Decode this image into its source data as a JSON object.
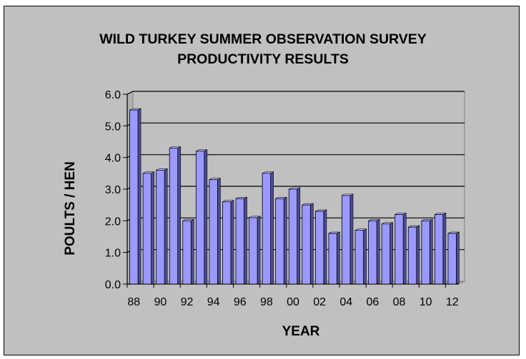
{
  "chart_data": {
    "type": "bar",
    "title": "WILD TURKEY SUMMER OBSERVATION SURVEY",
    "subtitle": "PRODUCTIVITY RESULTS",
    "xlabel": "YEAR",
    "ylabel": "POULTS / HEN",
    "ylim": [
      0,
      6
    ],
    "yticks": [
      "0.0",
      "1.0",
      "2.0",
      "3.0",
      "4.0",
      "5.0",
      "6.0"
    ],
    "categories": [
      "88",
      "89",
      "90",
      "91",
      "92",
      "93",
      "94",
      "95",
      "96",
      "97",
      "98",
      "99",
      "00",
      "01",
      "02",
      "03",
      "04",
      "05",
      "06",
      "07",
      "08",
      "09",
      "10",
      "11",
      "12"
    ],
    "xtick_labels": [
      "88",
      "90",
      "92",
      "94",
      "96",
      "98",
      "00",
      "02",
      "04",
      "06",
      "08",
      "10",
      "12"
    ],
    "values": [
      5.5,
      3.5,
      3.6,
      4.3,
      2.0,
      4.2,
      3.3,
      2.6,
      2.7,
      2.1,
      3.5,
      2.7,
      3.0,
      2.5,
      2.3,
      1.6,
      2.8,
      1.7,
      2.0,
      1.9,
      2.2,
      1.8,
      2.0,
      2.2,
      1.6
    ],
    "grid": true,
    "legend": "none",
    "colors": {
      "bar_front": "#9999ff",
      "bar_side": "#4d4d99",
      "bar_top": "#ccccff",
      "wall": "#c0c0c0",
      "frame_background": "#c0c0c0"
    }
  }
}
